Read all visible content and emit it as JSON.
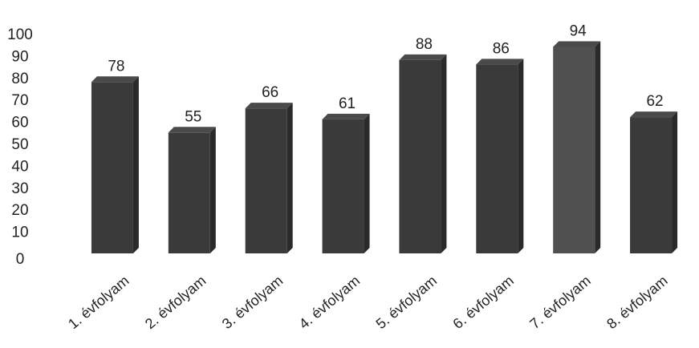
{
  "chart_data": {
    "type": "bar",
    "categories": [
      "1. évfolyam",
      "2. évfolyam",
      "3. évfolyam",
      "4. évfolyam",
      "5. évfolyam",
      "6. évfolyam",
      "7. évfolyam",
      "8. évfolyam"
    ],
    "values": [
      78,
      55,
      66,
      61,
      88,
      86,
      94,
      62
    ],
    "title": "",
    "xlabel": "",
    "ylabel": "",
    "ylim": [
      0,
      100
    ],
    "yticks": [
      0,
      10,
      20,
      30,
      40,
      50,
      60,
      70,
      80,
      90,
      100
    ],
    "grid": false,
    "legend": "none",
    "bar_style": "3d",
    "colors": {
      "bar": "#3a3a3a",
      "bar_top": "#4a4a4a",
      "bar_side": "#2a2a2a",
      "highlight_bar": "#505050",
      "text": "#222222"
    }
  }
}
